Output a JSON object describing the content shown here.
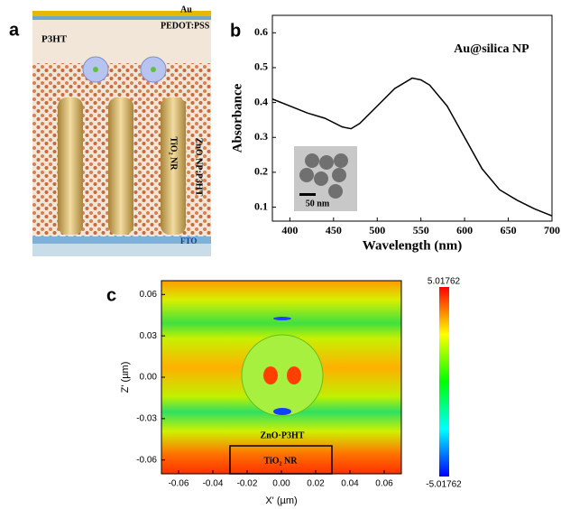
{
  "diagram": {
    "panel_label": "a",
    "labels": [
      "Au",
      "PEDOT:PSS",
      "P3HT",
      "ZnO NP:P3HT",
      "TiO₂ NR",
      "FTO"
    ]
  },
  "chart_data": [
    {
      "type": "line",
      "panel_label": "b",
      "annotation": "Au@silica NP",
      "inset_label": "50 nm",
      "x_label": "Wavelength (nm)",
      "y_label": "Absorbance",
      "color": "#000000",
      "x": [
        380,
        400,
        420,
        440,
        460,
        470,
        480,
        500,
        520,
        540,
        550,
        560,
        580,
        600,
        620,
        640,
        660,
        680,
        700
      ],
      "values": [
        0.41,
        0.39,
        0.37,
        0.355,
        0.33,
        0.325,
        0.34,
        0.39,
        0.44,
        0.47,
        0.465,
        0.45,
        0.39,
        0.3,
        0.21,
        0.15,
        0.12,
        0.095,
        0.075
      ],
      "xlim": [
        380,
        700
      ],
      "xticks": [
        400,
        450,
        500,
        550,
        600,
        650,
        700
      ],
      "ylim": [
        0.06,
        0.65
      ],
      "yticks": [
        0.1,
        0.2,
        0.3,
        0.4,
        0.5,
        0.6
      ]
    },
    {
      "type": "heatmap",
      "panel_label": "c",
      "x_label": "X' (µm)",
      "y_label": "Z' (µm)",
      "annotations": [
        "ZnO·P3HT",
        "TiO₂ NR"
      ],
      "xlim": [
        -0.07,
        0.07
      ],
      "xticks": [
        -0.06,
        -0.04,
        -0.02,
        {
          "value": 0,
          "label": "0.00"
        },
        0.02,
        0.04,
        0.06
      ],
      "ylim": [
        -0.07,
        0.07
      ],
      "yticks": [
        -0.06,
        -0.03,
        {
          "value": 0,
          "label": "0.00"
        },
        0.03,
        0.06
      ],
      "clim": [
        -5.01762,
        5.01762
      ],
      "colormap": [
        "#0000ff",
        "#00ffff",
        "#00ff00",
        "#ffff00",
        "#ff0000"
      ]
    }
  ]
}
